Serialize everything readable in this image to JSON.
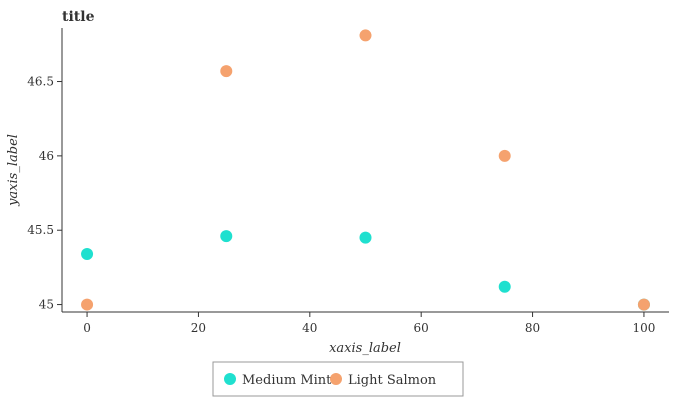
{
  "chart_data": {
    "type": "scatter",
    "title": "title",
    "xlabel": "xaxis_label",
    "ylabel": "yaxis_label",
    "xlim": [
      -4.5,
      104.5
    ],
    "ylim": [
      44.95,
      46.86
    ],
    "xticks": [
      0,
      20,
      40,
      60,
      80,
      100
    ],
    "xtick_labels": [
      "0",
      "20",
      "40",
      "60",
      "80",
      "100"
    ],
    "yticks": [
      45,
      45.5,
      46,
      46.5
    ],
    "ytick_labels": [
      "45",
      "45.5",
      "46",
      "46.5"
    ],
    "grid": false,
    "legend_position": "bottom-center",
    "series": [
      {
        "name": "Medium Mint",
        "color": "#1fe0cf",
        "points": [
          {
            "x": 0,
            "y": 45.34
          },
          {
            "x": 25,
            "y": 45.46
          },
          {
            "x": 50,
            "y": 45.45
          },
          {
            "x": 75,
            "y": 45.12
          },
          {
            "x": 100,
            "y": 45.0
          }
        ]
      },
      {
        "name": "Light Salmon",
        "color": "#f5a26e",
        "points": [
          {
            "x": 0,
            "y": 45.0
          },
          {
            "x": 25,
            "y": 46.57
          },
          {
            "x": 50,
            "y": 46.81
          },
          {
            "x": 75,
            "y": 46.0
          },
          {
            "x": 100,
            "y": 45.0
          }
        ]
      }
    ]
  }
}
